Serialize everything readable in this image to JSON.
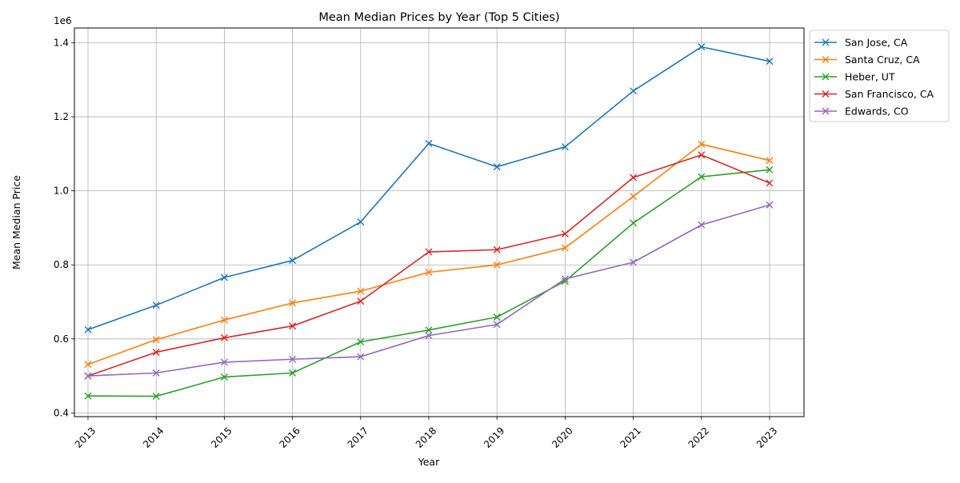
{
  "chart_data": {
    "type": "line",
    "title": "Mean Median Prices by Year (Top 5 Cities)",
    "xlabel": "Year",
    "ylabel": "Mean Median Price",
    "y_multiplier_label": "1e6",
    "x": [
      "2013",
      "2014",
      "2015",
      "2016",
      "2017",
      "2018",
      "2019",
      "2020",
      "2021",
      "2022",
      "2023"
    ],
    "x_ticks": [
      "2013",
      "2014",
      "2015",
      "2016",
      "2017",
      "2018",
      "2019",
      "2020",
      "2021",
      "2022",
      "2023"
    ],
    "y_ticks": [
      {
        "value": 0.4,
        "label": "0.4"
      },
      {
        "value": 0.6,
        "label": "0.6"
      },
      {
        "value": 0.8,
        "label": "0.8"
      },
      {
        "value": 1.0,
        "label": "1.0"
      },
      {
        "value": 1.2,
        "label": "1.2"
      },
      {
        "value": 1.4,
        "label": "1.4"
      }
    ],
    "ylim": [
      0.39,
      1.44
    ],
    "grid": true,
    "marker": "x",
    "legend_position": "outside-top-right",
    "series": [
      {
        "name": "San Jose, CA",
        "color": "#1f77b4",
        "values": [
          0.625,
          0.691,
          0.766,
          0.812,
          0.916,
          1.128,
          1.065,
          1.119,
          1.27,
          1.389,
          1.35
        ]
      },
      {
        "name": "Santa Cruz, CA",
        "color": "#ff7f0e",
        "values": [
          0.531,
          0.598,
          0.651,
          0.697,
          0.729,
          0.78,
          0.8,
          0.846,
          0.985,
          1.126,
          1.082
        ]
      },
      {
        "name": "Heber, UT",
        "color": "#2ca02c",
        "values": [
          0.446,
          0.445,
          0.497,
          0.508,
          0.592,
          0.624,
          0.659,
          0.756,
          0.913,
          1.038,
          1.057
        ]
      },
      {
        "name": "San Francisco, CA",
        "color": "#d62728",
        "values": [
          0.5,
          0.564,
          0.603,
          0.635,
          0.702,
          0.835,
          0.841,
          0.884,
          1.036,
          1.097,
          1.021
        ]
      },
      {
        "name": "Edwards, CO",
        "color": "#9467bd",
        "values": [
          0.5,
          0.508,
          0.537,
          0.545,
          0.552,
          0.609,
          0.639,
          0.762,
          0.807,
          0.908,
          0.962
        ]
      }
    ]
  }
}
